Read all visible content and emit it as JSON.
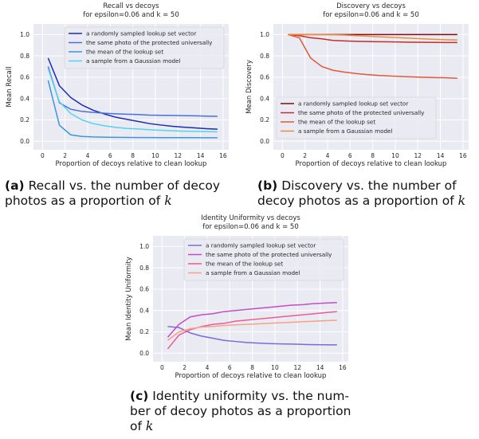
{
  "chart_data": [
    {
      "id": "a",
      "type": "line",
      "title": "Recall vs decoys",
      "subtitle": "for epsilon=0.06 and k = 50",
      "xlabel": "Proportion of decoys relative to clean lookup",
      "ylabel": "Mean Recall",
      "xlim": [
        -0.8,
        16.5
      ],
      "ylim": [
        -0.08,
        1.1
      ],
      "xticks": [
        0,
        2,
        4,
        6,
        8,
        10,
        12,
        14,
        16
      ],
      "yticks": [
        0.0,
        0.2,
        0.4,
        0.6,
        0.8,
        1.0
      ],
      "grid": true,
      "legend": "top-right",
      "x": [
        0.5,
        1.5,
        2.5,
        3.5,
        4.5,
        5.5,
        6.5,
        7.5,
        8.5,
        9.5,
        10.5,
        11.5,
        12.5,
        13.5,
        14.5,
        15.5
      ],
      "series": [
        {
          "name": "a randomly sampled lookup set vector",
          "color": "#1c2bb8",
          "values": [
            0.78,
            0.52,
            0.41,
            0.34,
            0.29,
            0.255,
            0.225,
            0.205,
            0.185,
            0.165,
            0.152,
            0.14,
            0.132,
            0.125,
            0.118,
            0.113
          ]
        },
        {
          "name": "the same photo of the protected universally",
          "color": "#4a70e0",
          "values": [
            0.7,
            0.36,
            0.3,
            0.28,
            0.27,
            0.263,
            0.257,
            0.253,
            0.25,
            0.245,
            0.243,
            0.242,
            0.24,
            0.238,
            0.236,
            0.234
          ]
        },
        {
          "name": "the mean of the lookup set",
          "color": "#3a96e2",
          "values": [
            0.57,
            0.15,
            0.06,
            0.045,
            0.04,
            0.038,
            0.037,
            0.036,
            0.035,
            0.035,
            0.034,
            0.034,
            0.034,
            0.034,
            0.033,
            0.033
          ]
        },
        {
          "name": "a sample from a Gaussian model",
          "color": "#4fd4f0",
          "values": [
            0.68,
            0.37,
            0.26,
            0.2,
            0.165,
            0.145,
            0.13,
            0.12,
            0.115,
            0.108,
            0.103,
            0.098,
            0.095,
            0.093,
            0.09,
            0.088
          ]
        }
      ]
    },
    {
      "id": "b",
      "type": "line",
      "title": "Discovery vs decoys",
      "subtitle": "for epsilon=0.06 and k = 50",
      "xlabel": "Proportion of decoys relative to clean lookup",
      "ylabel": "Mean Discovery",
      "xlim": [
        -0.8,
        16.5
      ],
      "ylim": [
        -0.08,
        1.1
      ],
      "xticks": [
        0,
        2,
        4,
        6,
        8,
        10,
        12,
        14,
        16
      ],
      "yticks": [
        0.0,
        0.2,
        0.4,
        0.6,
        0.8,
        1.0
      ],
      "grid": true,
      "legend": "lower-left",
      "x": [
        0.5,
        1.5,
        2.5,
        3.5,
        4.5,
        5.5,
        6.5,
        7.5,
        8.5,
        9.5,
        10.5,
        11.5,
        12.5,
        13.5,
        14.5,
        15.5
      ],
      "series": [
        {
          "name": "a randomly sampled lookup set vector",
          "color": "#7a1016",
          "values": [
            1.0,
            1.0,
            1.0,
            1.0,
            1.0,
            1.0,
            1.0,
            1.0,
            1.0,
            1.0,
            1.0,
            1.0,
            1.0,
            1.0,
            1.0,
            1.0
          ]
        },
        {
          "name": "the same photo of the protected universally",
          "color": "#c42e2e",
          "values": [
            1.0,
            0.99,
            0.97,
            0.96,
            0.945,
            0.94,
            0.937,
            0.935,
            0.933,
            0.932,
            0.93,
            0.928,
            0.927,
            0.926,
            0.925,
            0.925
          ]
        },
        {
          "name": "the mean of the lookup set",
          "color": "#e0583a",
          "values": [
            1.0,
            0.97,
            0.78,
            0.7,
            0.665,
            0.648,
            0.635,
            0.625,
            0.617,
            0.612,
            0.607,
            0.603,
            0.6,
            0.597,
            0.595,
            0.59
          ]
        },
        {
          "name": "a sample from a Gaussian model",
          "color": "#f08a3c",
          "values": [
            1.0,
            1.0,
            1.0,
            1.0,
            0.998,
            0.995,
            0.99,
            0.985,
            0.98,
            0.975,
            0.97,
            0.965,
            0.96,
            0.955,
            0.952,
            0.95
          ]
        }
      ]
    },
    {
      "id": "c",
      "type": "line",
      "title": "Identity Uniformity vs decoys",
      "subtitle": "for epsilon=0.06 and k = 50",
      "xlabel": "Proportion of decoys relative to clean lookup",
      "ylabel": "Mean Identity Uniformity",
      "xlim": [
        -0.8,
        16.5
      ],
      "ylim": [
        -0.08,
        1.1
      ],
      "xticks": [
        0,
        2,
        4,
        6,
        8,
        10,
        12,
        14,
        16
      ],
      "yticks": [
        0.0,
        0.2,
        0.4,
        0.6,
        0.8,
        1.0
      ],
      "grid": true,
      "legend": "top-right",
      "x": [
        0.5,
        1.5,
        2.5,
        3.5,
        4.5,
        5.5,
        6.5,
        7.5,
        8.5,
        9.5,
        10.5,
        11.5,
        12.5,
        13.5,
        14.5,
        15.5
      ],
      "series": [
        {
          "name": "a randomly sampled lookup set vector",
          "color": "#7d6ad6",
          "values": [
            0.25,
            0.24,
            0.19,
            0.16,
            0.14,
            0.12,
            0.11,
            0.1,
            0.095,
            0.09,
            0.087,
            0.085,
            0.082,
            0.08,
            0.079,
            0.078
          ]
        },
        {
          "name": "the same photo of the protected universally",
          "color": "#c44cc4",
          "values": [
            0.15,
            0.27,
            0.34,
            0.36,
            0.37,
            0.39,
            0.4,
            0.41,
            0.42,
            0.43,
            0.44,
            0.45,
            0.455,
            0.465,
            0.47,
            0.475
          ]
        },
        {
          "name": "the mean of the lookup set",
          "color": "#ee5a92",
          "values": [
            0.04,
            0.17,
            0.22,
            0.25,
            0.27,
            0.28,
            0.3,
            0.31,
            0.32,
            0.33,
            0.34,
            0.35,
            0.36,
            0.37,
            0.38,
            0.39
          ]
        },
        {
          "name": "a sample from a Gaussian model",
          "color": "#f7a089",
          "values": [
            0.12,
            0.2,
            0.23,
            0.245,
            0.25,
            0.26,
            0.265,
            0.27,
            0.275,
            0.28,
            0.285,
            0.29,
            0.295,
            0.3,
            0.305,
            0.308
          ]
        }
      ]
    }
  ],
  "captions": {
    "a": {
      "label": "(a)",
      "line1": "Recall vs. the number of decoy",
      "line2": "photos as a proportion of",
      "var": "k"
    },
    "b": {
      "label": "(b)",
      "line1": "Discovery vs. the number of",
      "line2": "decoy photos as a proportion of",
      "var": "k"
    },
    "c": {
      "label": "(c)",
      "line1": "Identity uniformity vs. the num-",
      "line2": "ber of decoy photos as a proportion",
      "line3": "of",
      "var": "k"
    }
  }
}
